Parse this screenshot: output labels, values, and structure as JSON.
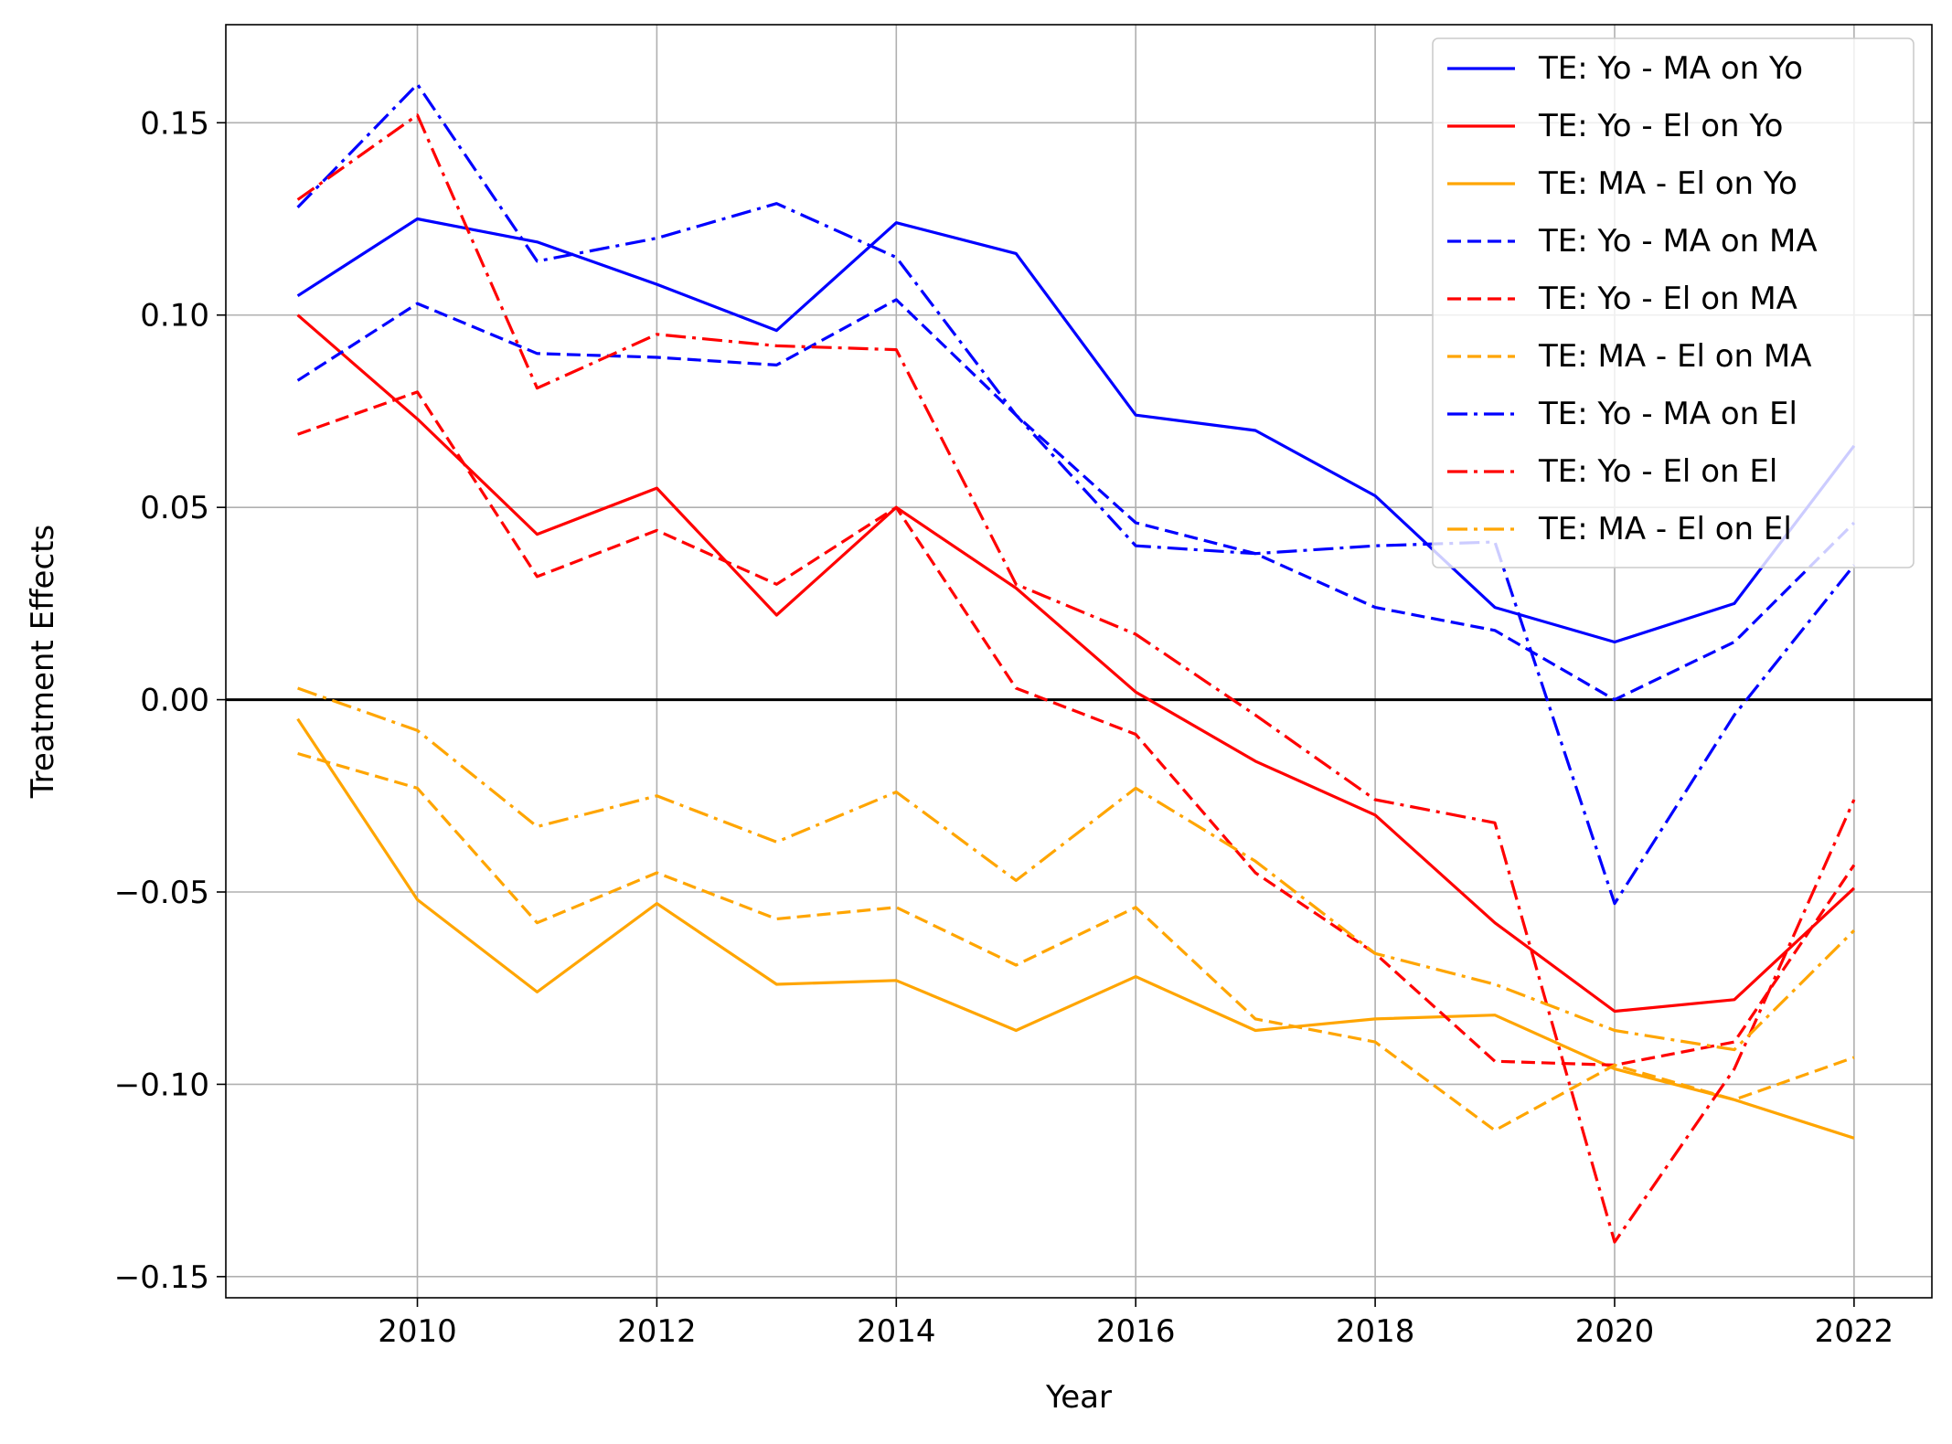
{
  "chart_data": {
    "type": "line",
    "title": "",
    "xlabel": "Year",
    "ylabel": "Treatment Effects",
    "xlim": [
      2008.4,
      2022.65
    ],
    "ylim": [
      -0.1555,
      0.1755
    ],
    "xticks": [
      2010,
      2012,
      2014,
      2016,
      2018,
      2020,
      2022
    ],
    "xtick_labels": [
      "2010",
      "2012",
      "2014",
      "2016",
      "2018",
      "2020",
      "2022"
    ],
    "yticks": [
      0.15,
      0.1,
      0.05,
      0.0,
      -0.05,
      -0.1,
      -0.15
    ],
    "ytick_labels": [
      "0.15",
      "0.10",
      "0.05",
      "0.00",
      "−0.05",
      "−0.10",
      "−0.15"
    ],
    "grid": true,
    "zero_line": true,
    "legend_position": "top-right",
    "x": [
      2009,
      2010,
      2011,
      2012,
      2013,
      2014,
      2015,
      2016,
      2017,
      2018,
      2019,
      2020,
      2021,
      2022
    ],
    "series": [
      {
        "name": "TE: Yo - MA on Yo",
        "color": "#0000ff",
        "style": "solid",
        "values": [
          0.105,
          0.125,
          0.119,
          0.108,
          0.096,
          0.124,
          0.116,
          0.074,
          0.07,
          0.053,
          0.024,
          0.015,
          0.025,
          0.066
        ]
      },
      {
        "name": "TE: Yo - El on Yo",
        "color": "#ff0000",
        "style": "solid",
        "values": [
          0.1,
          0.073,
          0.043,
          0.055,
          0.022,
          0.05,
          0.029,
          0.002,
          -0.016,
          -0.03,
          -0.058,
          -0.081,
          -0.078,
          -0.049
        ]
      },
      {
        "name": "TE: MA - El on Yo",
        "color": "#ffa500",
        "style": "solid",
        "values": [
          -0.005,
          -0.052,
          -0.076,
          -0.053,
          -0.074,
          -0.073,
          -0.086,
          -0.072,
          -0.086,
          -0.083,
          -0.082,
          -0.096,
          -0.104,
          -0.114
        ]
      },
      {
        "name": "TE: Yo - MA on MA",
        "color": "#0000ff",
        "style": "dashed",
        "values": [
          0.083,
          0.103,
          0.09,
          0.089,
          0.087,
          0.104,
          0.074,
          0.046,
          0.038,
          0.024,
          0.018,
          0.0,
          0.015,
          0.046
        ]
      },
      {
        "name": "TE: Yo - El on MA",
        "color": "#ff0000",
        "style": "dashed",
        "values": [
          0.069,
          0.08,
          0.032,
          0.044,
          0.03,
          0.05,
          0.003,
          -0.009,
          -0.045,
          -0.066,
          -0.094,
          -0.095,
          -0.089,
          -0.043
        ]
      },
      {
        "name": "TE: MA - El on MA",
        "color": "#ffa500",
        "style": "dashed",
        "values": [
          -0.014,
          -0.023,
          -0.058,
          -0.045,
          -0.057,
          -0.054,
          -0.069,
          -0.054,
          -0.083,
          -0.089,
          -0.112,
          -0.095,
          -0.104,
          -0.093
        ]
      },
      {
        "name": "TE: Yo - MA on El",
        "color": "#0000ff",
        "style": "dashdot",
        "values": [
          0.128,
          0.16,
          0.114,
          0.12,
          0.129,
          0.115,
          0.074,
          0.04,
          0.038,
          0.04,
          0.041,
          -0.053,
          -0.004,
          0.035
        ]
      },
      {
        "name": "TE: Yo - El on El",
        "color": "#ff0000",
        "style": "dashdot",
        "values": [
          0.13,
          0.152,
          0.081,
          0.095,
          0.092,
          0.091,
          0.03,
          0.017,
          -0.004,
          -0.026,
          -0.032,
          -0.141,
          -0.096,
          -0.026
        ]
      },
      {
        "name": "TE: MA - El on El",
        "color": "#ffa500",
        "style": "dashdot",
        "values": [
          0.003,
          -0.008,
          -0.033,
          -0.025,
          -0.037,
          -0.024,
          -0.047,
          -0.023,
          -0.042,
          -0.066,
          -0.074,
          -0.086,
          -0.091,
          -0.06
        ]
      }
    ]
  }
}
